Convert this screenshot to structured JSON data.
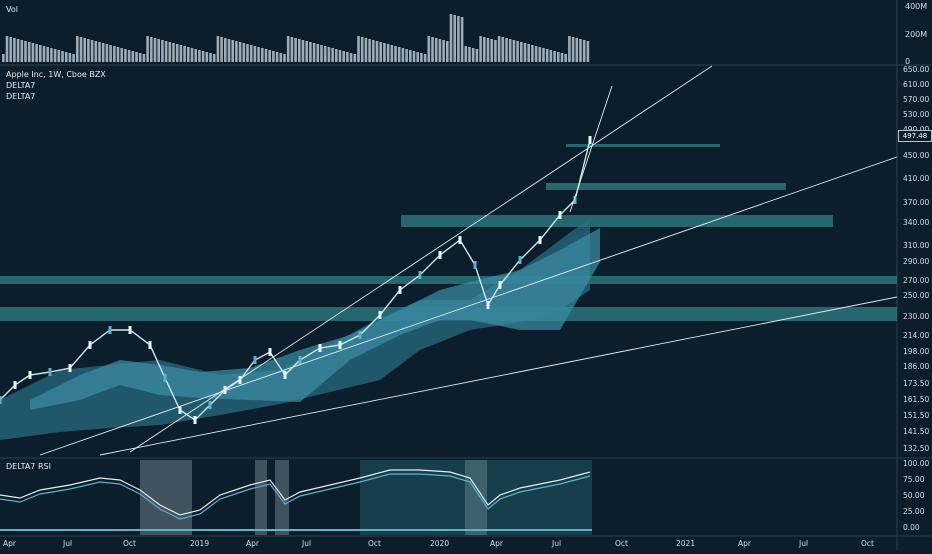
{
  "colors": {
    "bg": "#0c1e2b",
    "cloud_light": "#5fb3c9",
    "cloud_mid": "#3a8aa0",
    "cloud_dark": "#1f5f74",
    "band": "#2f7f86",
    "line": "#e6ebef"
  },
  "volume_pane": {
    "title": "Vol",
    "axis_labels": [
      "400M",
      "200M",
      "0"
    ]
  },
  "main_pane": {
    "symbol_line": "Apple Inc, 1W, Cboe BZX",
    "indicator_1": "DELTA7",
    "indicator_2": "DELTA7",
    "price_axis": [
      "650.00",
      "610.00",
      "570.00",
      "530.00",
      "490.00",
      "450.00",
      "410.00",
      "370.00",
      "340.00",
      "310.00",
      "290.00",
      "270.00",
      "250.00",
      "230.00",
      "214.00",
      "198.00",
      "186.00",
      "173.50",
      "161.50",
      "151.50",
      "141.50",
      "132.50"
    ],
    "last_price": "497.48"
  },
  "rsi_pane": {
    "title": "DELTA7 RSI",
    "axis_labels": [
      "100.00",
      "75.00",
      "50.00",
      "25.00",
      "0.00"
    ]
  },
  "time_axis": [
    "Apr",
    "Jul",
    "Oct",
    "2019",
    "Apr",
    "Jul",
    "Oct",
    "2020",
    "Apr",
    "Jul",
    "Oct",
    "2021",
    "Apr",
    "Jul",
    "Oct"
  ]
}
